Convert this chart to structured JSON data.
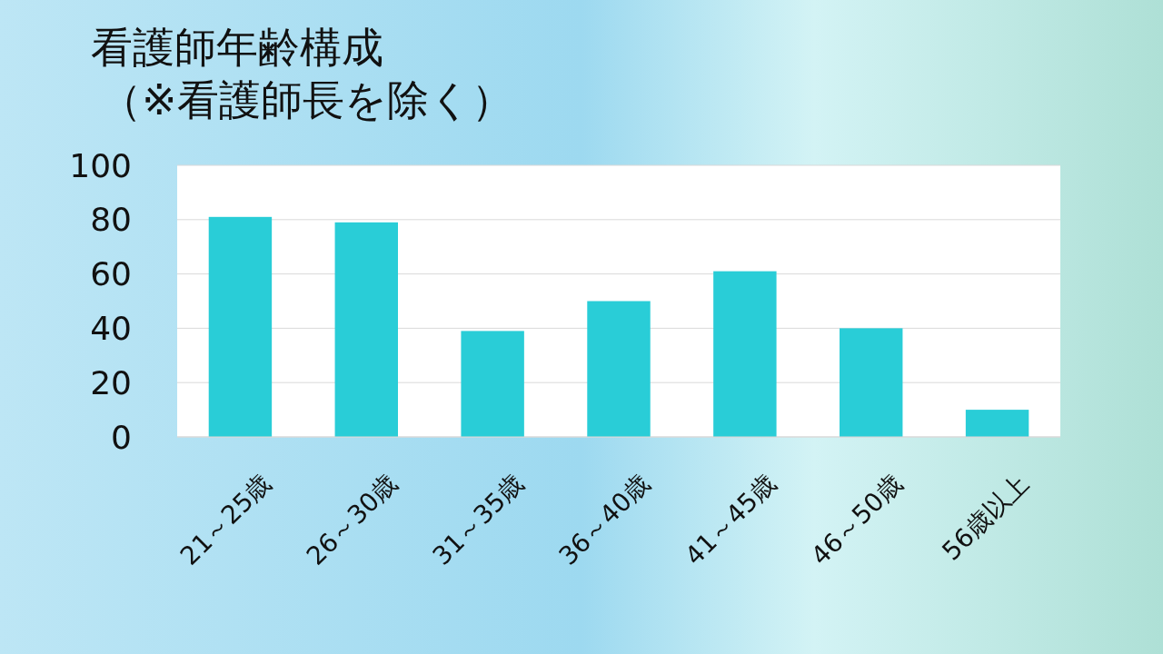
{
  "chart_data": {
    "type": "bar",
    "title": "看護師年齢構成",
    "subtitle": "（※看護師長を除く）",
    "categories": [
      "21～25歳",
      "26～30歳",
      "31～35歳",
      "36～40歳",
      "41～45歳",
      "46～50歳",
      "56歳以上"
    ],
    "values": [
      81,
      79,
      39,
      50,
      61,
      40,
      10
    ],
    "color": "#29cdd7",
    "ylim": [
      0,
      100
    ],
    "yticks": [
      0,
      20,
      40,
      60,
      80,
      100
    ],
    "grid": "y"
  }
}
